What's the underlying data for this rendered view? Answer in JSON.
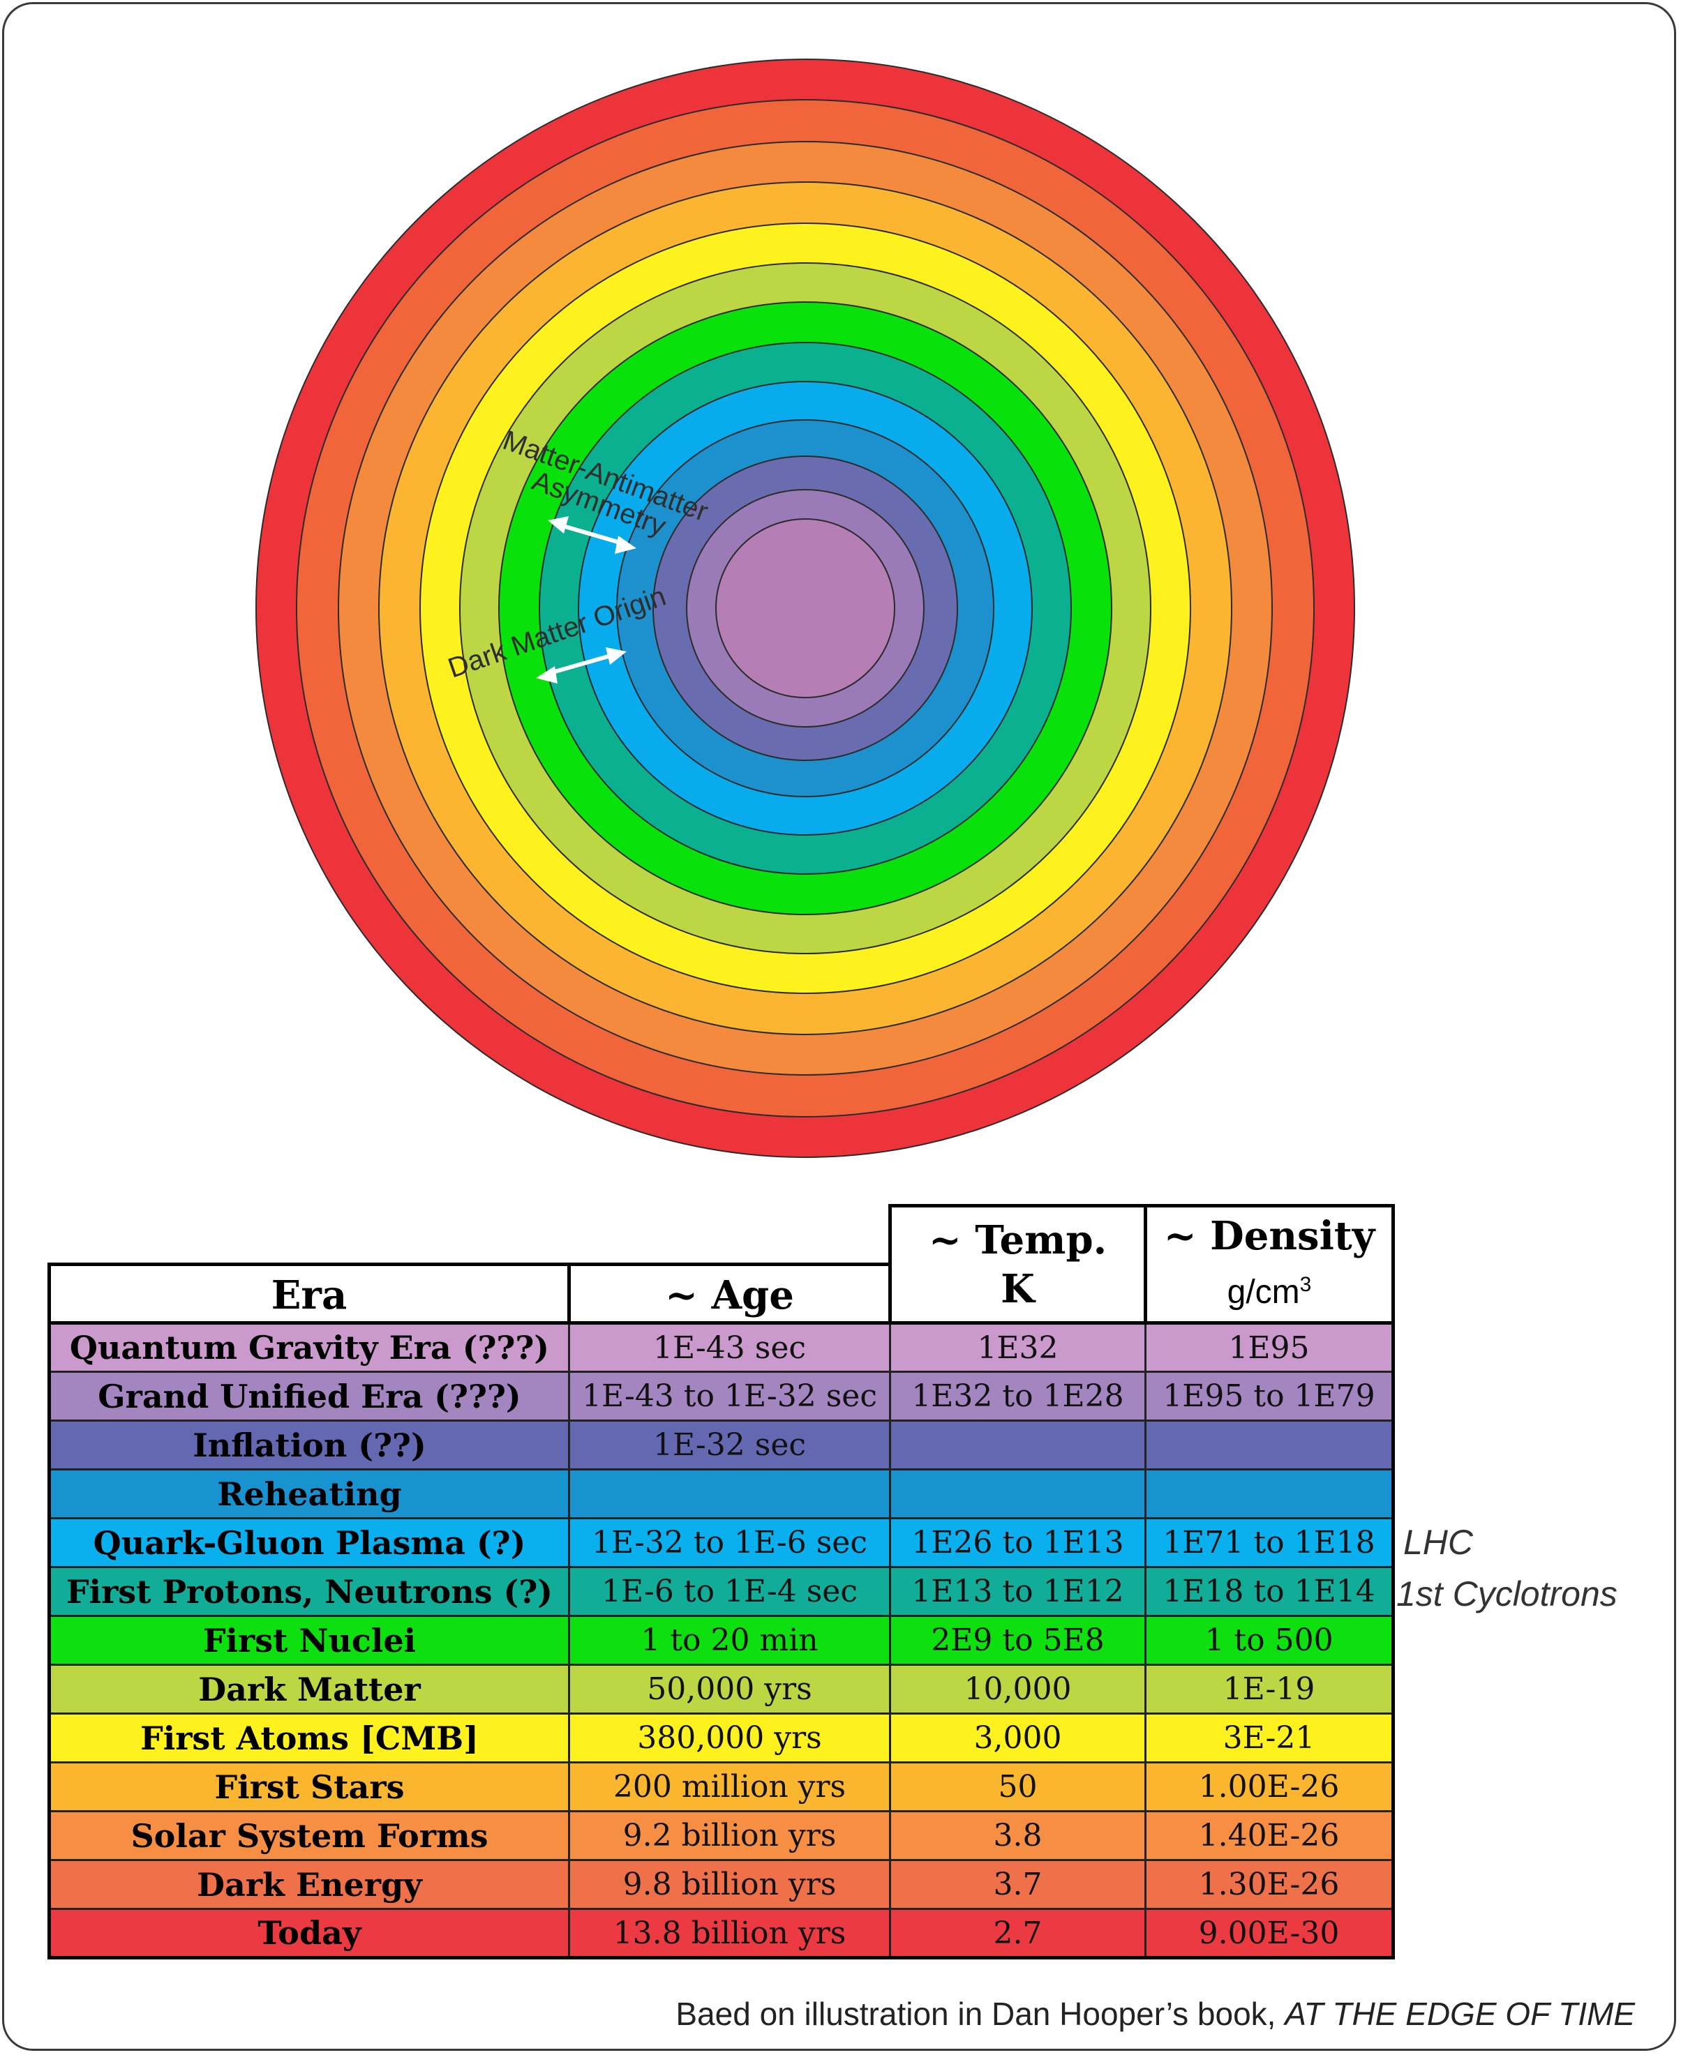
{
  "diagram": {
    "ring_colors": [
      "#ee343b",
      "#f0663a",
      "#f48a3d",
      "#fbb531",
      "#fef21e",
      "#bdd744",
      "#09e10a",
      "#0ab08f",
      "#08acec",
      "#1d91cd",
      "#6a6cb0",
      "#9a7bb8",
      "#b57fb5"
    ],
    "annotations": [
      {
        "label_lines": [
          "Matter-Antimatter",
          "Asymmetry"
        ]
      },
      {
        "label_lines": [
          "Dark Matter Origin"
        ]
      }
    ]
  },
  "table": {
    "headers": {
      "era": "Era",
      "age": "~ Age",
      "temp_line1": "~ Temp.",
      "temp_line2": "K",
      "density_line1": "~ Density",
      "density_unit": "g/cm",
      "density_unit_sup": "3"
    },
    "rows": [
      {
        "era": "Quantum Gravity Era (???)",
        "age": "1E-43 sec",
        "temp": "1E32",
        "density": "1E95",
        "color": "#cb9acc"
      },
      {
        "era": "Grand Unified Era (???)",
        "age": "1E-43 to 1E-32 sec",
        "temp": "1E32 to 1E28",
        "density": "1E95 to 1E79",
        "color": "#a385c0"
      },
      {
        "era": "Inflation (??)",
        "age": "1E-32 sec",
        "temp": "",
        "density": "",
        "color": "#6368b1"
      },
      {
        "era": "Reheating",
        "age": "",
        "temp": "",
        "density": "",
        "color": "#1893d0"
      },
      {
        "era": "Quark-Gluon Plasma (?)",
        "age": "1E-32 to 1E-6 sec",
        "temp": "1E26 to 1E13",
        "density": "1E71 to 1E18",
        "color": "#09b0ed"
      },
      {
        "era": "First Protons, Neutrons (?)",
        "age": "1E-6 to 1E-4 sec",
        "temp": "1E13 to 1E12",
        "density": "1E18 to 1E14",
        "color": "#12ad99"
      },
      {
        "era": "First Nuclei",
        "age": "1 to 20 min",
        "temp": "2E9 to 5E8",
        "density": "1 to 500",
        "color": "#0ee00f"
      },
      {
        "era": "Dark Matter",
        "age": "50,000 yrs",
        "temp": "10,000",
        "density": "1E-19",
        "color": "#bcd644"
      },
      {
        "era": "First Atoms [CMB]",
        "age": "380,000 yrs",
        "temp": "3,000",
        "density": "3E-21",
        "color": "#fef21e"
      },
      {
        "era": "First Stars",
        "age": "200 million yrs",
        "temp": "50",
        "density": "1.00E-26",
        "color": "#fbb62f"
      },
      {
        "era": "Solar System Forms",
        "age": "9.2 billion yrs",
        "temp": "3.8",
        "density": "1.40E-26",
        "color": "#f68f44"
      },
      {
        "era": "Dark Energy",
        "age": "9.8 billion yrs",
        "temp": "3.7",
        "density": "1.30E-26",
        "color": "#ee714a"
      },
      {
        "era": "Today",
        "age": "13.8 billion yrs",
        "temp": "2.7",
        "density": "9.00E-30",
        "color": "#ec3a43"
      }
    ]
  },
  "side_notes": {
    "lhc": "LHC",
    "cyclotrons": "1st Cyclotrons"
  },
  "credit": {
    "prefix": "Baed on illustration in Dan Hooper’s book, ",
    "book_title": "AT THE EDGE OF TIME"
  }
}
